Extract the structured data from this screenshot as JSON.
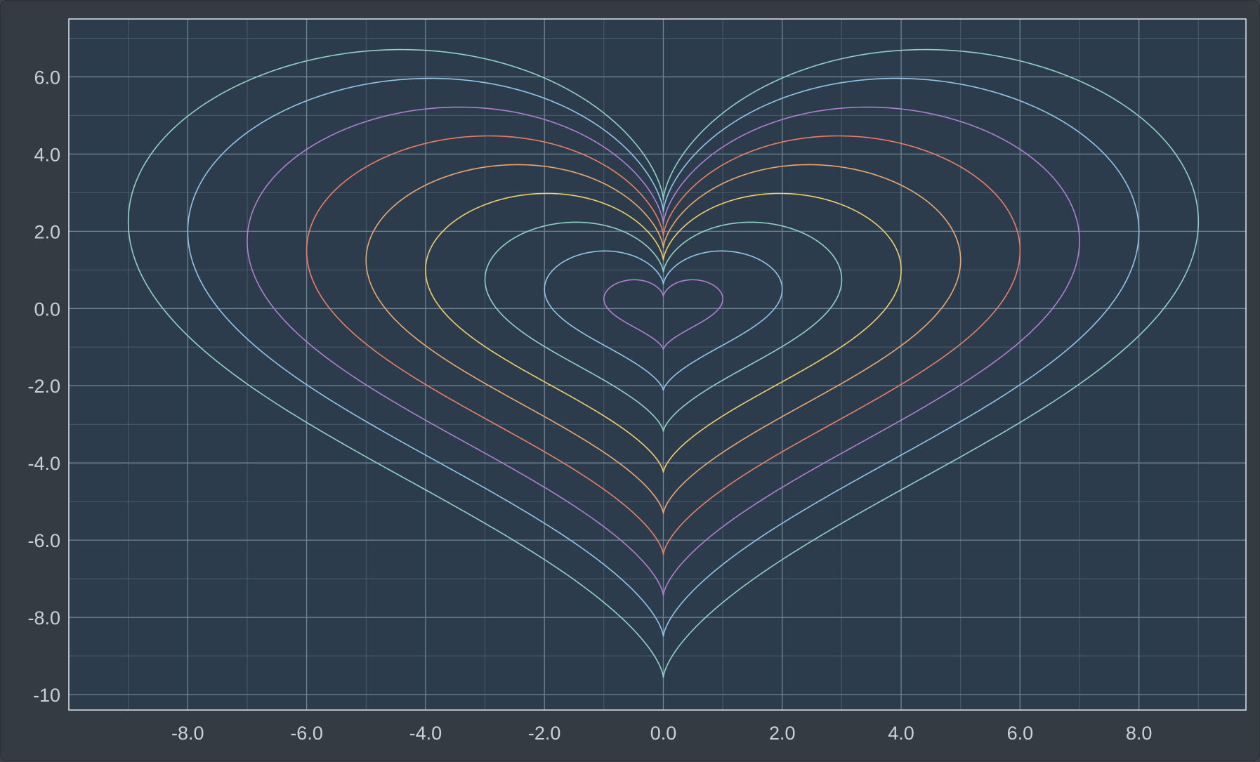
{
  "chart_data": {
    "type": "line",
    "title": "",
    "xlabel": "",
    "ylabel": "",
    "xlim": [
      -10.0,
      9.8
    ],
    "ylim": [
      -10.4,
      7.5
    ],
    "grid": true,
    "x_ticks": [
      -8.0,
      -6.0,
      -4.0,
      -2.0,
      0.0,
      2.0,
      4.0,
      6.0,
      8.0
    ],
    "x_tick_labels": [
      "-8.0",
      "-6.0",
      "-4.0",
      "-2.0",
      "0.0",
      "2.0",
      "4.0",
      "6.0",
      "8.0"
    ],
    "y_ticks": [
      6.0,
      4.0,
      2.0,
      0.0,
      -2.0,
      -4.0,
      -6.0,
      -8.0,
      -10.0
    ],
    "y_tick_labels": [
      "6.0",
      "4.0",
      "2.0",
      "0.0",
      "-2.0",
      "-4.0",
      "-6.0",
      "-8.0",
      "-10"
    ],
    "series": [
      {
        "scale": 1,
        "color": "#b07fd1"
      },
      {
        "scale": 2,
        "color": "#8fc7ea"
      },
      {
        "scale": 3,
        "color": "#8fd3c4"
      },
      {
        "scale": 4,
        "color": "#f2d064"
      },
      {
        "scale": 5,
        "color": "#eea86a"
      },
      {
        "scale": 6,
        "color": "#ec7f63"
      },
      {
        "scale": 7,
        "color": "#b07fd1"
      },
      {
        "scale": 8,
        "color": "#8fc7ea"
      },
      {
        "scale": 9,
        "color": "#8fd3c4"
      }
    ]
  },
  "colors": {
    "window_background": "#343b42",
    "plot_background": "#2d3c4c",
    "grid_major": "#6e8492",
    "grid_minor": "#4a5d6c",
    "frame": "#dde6ea",
    "tick_text": "#c9d2d8"
  }
}
